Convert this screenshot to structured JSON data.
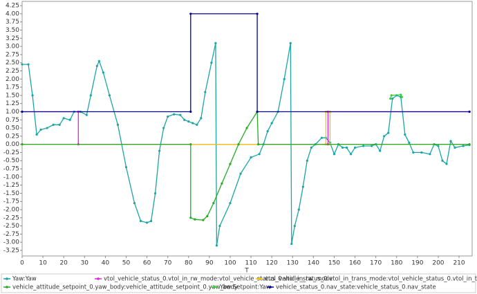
{
  "chart_data": {
    "type": "line",
    "x_label": "T",
    "xlim": [
      0,
      216.3
    ],
    "ylim": [
      -3.42,
      4.38
    ],
    "xticks": [
      0,
      10,
      20,
      30,
      40,
      50,
      60,
      70,
      80,
      90,
      100,
      110,
      120,
      130,
      140,
      150,
      160,
      170,
      180,
      190,
      200,
      210
    ],
    "yticks": [
      4.25,
      {
        "value": 4,
        "label": "4.00"
      },
      3.75,
      {
        "value": 3.5,
        "label": "3.50"
      },
      3.25,
      {
        "value": 3,
        "label": "3.00"
      },
      2.75,
      {
        "value": 2.5,
        "label": "2.50"
      },
      2.25,
      {
        "value": 2,
        "label": "2.00"
      },
      1.75,
      {
        "value": 1.5,
        "label": "1.50"
      },
      1.25,
      {
        "value": 1,
        "label": "1.00"
      },
      0.75,
      {
        "value": 0.5,
        "label": "0.50"
      },
      0.25,
      {
        "value": 0,
        "label": "0.00"
      },
      -0.25,
      {
        "value": -0.5,
        "label": "-0.50"
      },
      -0.75,
      {
        "value": -1,
        "label": "-1.00"
      },
      -1.25,
      {
        "value": -1.5,
        "label": "-1.50"
      },
      -1.75,
      {
        "value": -2,
        "label": "-2.00"
      },
      -2.25,
      {
        "value": -2.5,
        "label": "-2.50"
      },
      -2.75,
      {
        "value": -3,
        "label": "-3.00"
      },
      -3.25
    ],
    "grid": false,
    "legend": "bottom",
    "series": [
      {
        "name": "Yaw:Yaw",
        "color": "#19a5a5",
        "x": [
          0,
          3,
          5,
          7,
          9,
          12,
          15,
          18,
          20,
          23,
          25,
          28,
          31,
          33,
          36,
          37,
          39,
          42,
          46,
          50,
          54,
          57,
          60,
          62,
          64,
          66,
          68,
          70,
          73,
          76,
          78,
          80,
          82,
          84,
          86,
          88,
          91,
          93,
          93.5,
          95,
          100,
          105,
          110,
          114,
          116,
          118,
          120,
          123,
          126,
          129,
          129.5,
          131,
          133,
          135,
          137,
          139,
          141,
          144,
          146,
          148,
          150,
          152,
          154,
          156,
          158,
          160,
          164,
          168,
          170,
          172,
          174,
          176,
          178,
          180,
          182,
          184,
          186,
          188,
          192,
          196,
          198,
          200,
          202,
          204,
          206,
          208,
          212,
          215
        ],
        "values": [
          2.45,
          2.45,
          1.5,
          0.3,
          0.45,
          0.5,
          0.6,
          0.6,
          0.8,
          0.75,
          1.0,
          1.0,
          0.9,
          1.5,
          2.4,
          2.55,
          2.2,
          1.5,
          0.6,
          -0.7,
          -1.8,
          -2.35,
          -2.4,
          -2.35,
          -1.5,
          -0.2,
          0.5,
          0.85,
          0.92,
          0.9,
          0.75,
          0.7,
          0.65,
          0.6,
          0.8,
          1.6,
          2.5,
          3.1,
          -3.1,
          -2.5,
          -1.8,
          -0.9,
          -0.4,
          -0.3,
          0.0,
          0.4,
          0.65,
          1.0,
          2.0,
          3.1,
          -3.05,
          -2.5,
          -2.0,
          -1.3,
          -0.5,
          -0.1,
          0.0,
          0.2,
          0.2,
          0.05,
          -0.3,
          0.0,
          -0.1,
          -0.1,
          -0.3,
          -0.1,
          -0.05,
          -0.05,
          0.0,
          -0.2,
          0.25,
          0.35,
          1.4,
          1.5,
          1.45,
          0.3,
          0.05,
          -0.25,
          -0.25,
          -0.3,
          0.0,
          -0.05,
          -0.5,
          -0.6,
          0.1,
          -0.1,
          -0.05,
          -0.02
        ]
      },
      {
        "name": "vtol_vehicle_status_0.vtol_in_rw_mode:vtol_vehicle_status_0.vtol_in_rw_mode",
        "color": "#e020e0",
        "x": [
          0,
          27,
          27,
          147,
          147,
          215
        ],
        "values": [
          1,
          1,
          0,
          0,
          1,
          1
        ]
      },
      {
        "name": "vtol_vehicle_status_0.vtol_in_trans_mode:vtol_vehicle_status_0.vtol_in_trans_mode",
        "color": "#f5c400",
        "x": [
          0,
          146,
          146,
          148,
          148,
          215
        ],
        "values": [
          0,
          0,
          1,
          1,
          0,
          0
        ]
      },
      {
        "name": "vehicle_attitude_setpoint_0.yaw_body:vehicle_attitude_setpoint_0.yaw_body",
        "color": "#22aa22",
        "x": [
          0,
          81,
          81,
          83,
          87,
          89,
          92,
          96,
          100,
          104,
          108,
          113,
          113.5,
          215
        ],
        "values": [
          0,
          0,
          -2.25,
          -2.3,
          -2.32,
          -2.2,
          -1.8,
          -1.2,
          -0.6,
          0.0,
          0.5,
          1.0,
          0.0,
          0
        ]
      },
      {
        "name": "Yaw Setpoint:Yaw",
        "color": "#33cc33",
        "x": [
          177,
          177.5,
          182,
          182.5
        ],
        "values": [
          1.4,
          1.5,
          1.52,
          1.45
        ]
      },
      {
        "name": "vehicle_status_0.nav_state:vehicle_status_0.nav_state",
        "color": "#000099",
        "x": [
          0,
          81,
          81,
          113,
          113,
          215
        ],
        "values": [
          1,
          1,
          4,
          4,
          1,
          1
        ]
      }
    ]
  }
}
